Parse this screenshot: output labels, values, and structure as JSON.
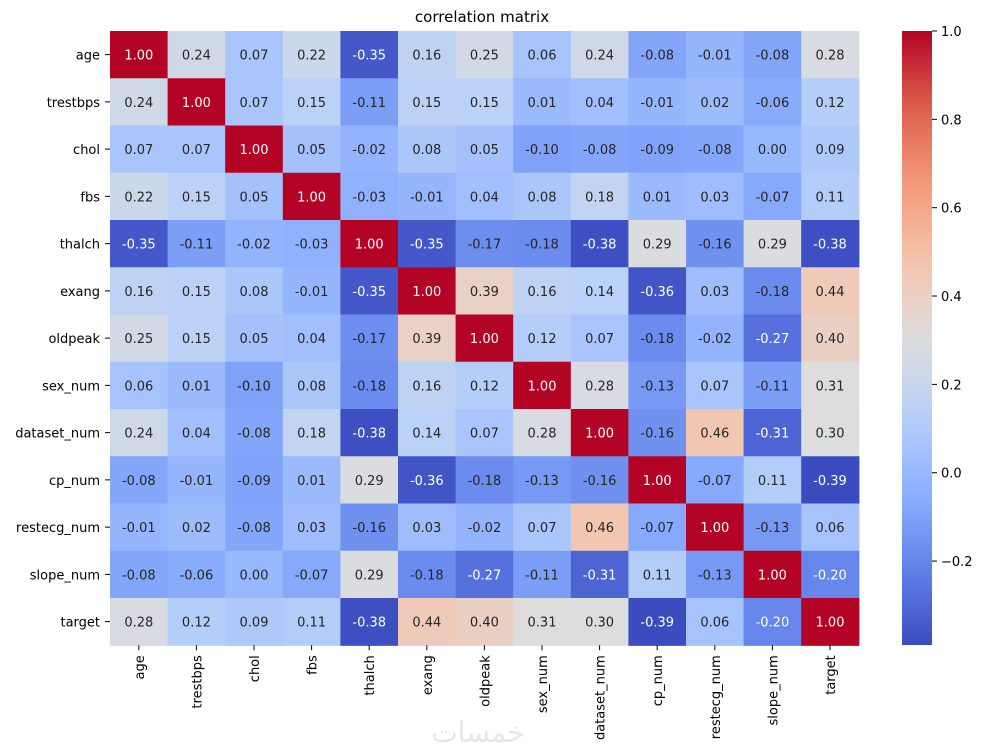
{
  "chart_data": {
    "type": "heatmap",
    "title": "correlation matrix",
    "colormap": "coolwarm",
    "annot_format": "0.00",
    "row_labels": [
      "age",
      "trestbps",
      "chol",
      "fbs",
      "thalch",
      "exang",
      "oldpeak",
      "sex_num",
      "dataset_num",
      "cp_num",
      "restecg_num",
      "slope_num",
      "target"
    ],
    "col_labels": [
      "age",
      "trestbps",
      "chol",
      "fbs",
      "thalch",
      "exang",
      "oldpeak",
      "sex_num",
      "dataset_num",
      "cp_num",
      "restecg_num",
      "slope_num",
      "target"
    ],
    "values": [
      [
        1.0,
        0.24,
        0.07,
        0.22,
        -0.35,
        0.16,
        0.25,
        0.06,
        0.24,
        -0.08,
        -0.01,
        -0.08,
        0.28
      ],
      [
        0.24,
        1.0,
        0.07,
        0.15,
        -0.11,
        0.15,
        0.15,
        0.01,
        0.04,
        -0.01,
        0.02,
        -0.06,
        0.12
      ],
      [
        0.07,
        0.07,
        1.0,
        0.05,
        -0.02,
        0.08,
        0.05,
        -0.1,
        -0.08,
        -0.09,
        -0.08,
        0.0,
        0.09
      ],
      [
        0.22,
        0.15,
        0.05,
        1.0,
        -0.03,
        -0.01,
        0.04,
        0.08,
        0.18,
        0.01,
        0.03,
        -0.07,
        0.11
      ],
      [
        -0.35,
        -0.11,
        -0.02,
        -0.03,
        1.0,
        -0.35,
        -0.17,
        -0.18,
        -0.38,
        0.29,
        -0.16,
        0.29,
        -0.38
      ],
      [
        0.16,
        0.15,
        0.08,
        -0.01,
        -0.35,
        1.0,
        0.39,
        0.16,
        0.14,
        -0.36,
        0.03,
        -0.18,
        0.44
      ],
      [
        0.25,
        0.15,
        0.05,
        0.04,
        -0.17,
        0.39,
        1.0,
        0.12,
        0.07,
        -0.18,
        -0.02,
        -0.27,
        0.4
      ],
      [
        0.06,
        0.01,
        -0.1,
        0.08,
        -0.18,
        0.16,
        0.12,
        1.0,
        0.28,
        -0.13,
        0.07,
        -0.11,
        0.31
      ],
      [
        0.24,
        0.04,
        -0.08,
        0.18,
        -0.38,
        0.14,
        0.07,
        0.28,
        1.0,
        -0.16,
        0.46,
        -0.31,
        0.3
      ],
      [
        -0.08,
        -0.01,
        -0.09,
        0.01,
        0.29,
        -0.36,
        -0.18,
        -0.13,
        -0.16,
        1.0,
        -0.07,
        0.11,
        -0.39
      ],
      [
        -0.01,
        0.02,
        -0.08,
        0.03,
        -0.16,
        0.03,
        -0.02,
        0.07,
        0.46,
        -0.07,
        1.0,
        -0.13,
        0.06
      ],
      [
        -0.08,
        -0.06,
        0.0,
        -0.07,
        0.29,
        -0.18,
        -0.27,
        -0.11,
        -0.31,
        0.11,
        -0.13,
        1.0,
        -0.2
      ],
      [
        0.28,
        0.12,
        0.09,
        0.11,
        -0.38,
        0.44,
        0.4,
        0.31,
        0.3,
        -0.39,
        0.06,
        -0.2,
        1.0
      ]
    ],
    "vmin": -0.39,
    "vmax": 1.0,
    "colorbar_ticks": [
      1.0,
      0.8,
      0.6,
      0.4,
      0.2,
      0.0,
      -0.2
    ],
    "colorbar_tick_labels": [
      "1.0",
      "0.8",
      "0.6",
      "0.4",
      "0.2",
      "0.0",
      "−0.2"
    ],
    "grid": false,
    "legend": "colorbar-right"
  },
  "watermark": "خمسات"
}
